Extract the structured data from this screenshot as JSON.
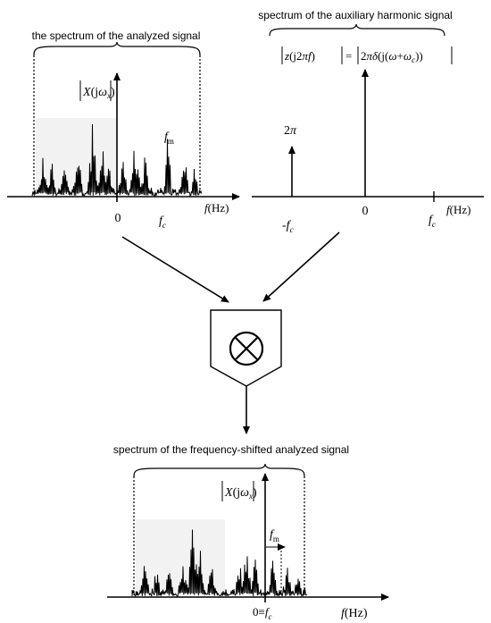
{
  "panels": {
    "analyzed": {
      "title": "the spectrum of the analyzed signal",
      "magnitude_label": "|X(jω_x)|",
      "freq_marker": "f_m",
      "origin_label": "0",
      "fc_label": "f_c",
      "axis_label": "f(Hz)"
    },
    "auxiliary": {
      "title": "spectrum of the auxiliary harmonic signal",
      "formula": "|z(j2πf)| = |2πδ(j(ω+ω_c))|",
      "impulse_label": "2π",
      "neg_fc_label": "-f_c",
      "origin_label": "0",
      "fc_label": "f_c",
      "axis_label": "f(Hz)"
    },
    "mixer": {
      "symbol": "⊗"
    },
    "shifted": {
      "title": "spectrum of the frequency-shifted analyzed signal",
      "magnitude_label": "|X(jω_x)|",
      "freq_marker": "f_m",
      "origin_label": "0≡f_c",
      "axis_label": "f(Hz)"
    }
  },
  "colors": {
    "ink": "#000000",
    "shade": "#f2f2f2"
  }
}
